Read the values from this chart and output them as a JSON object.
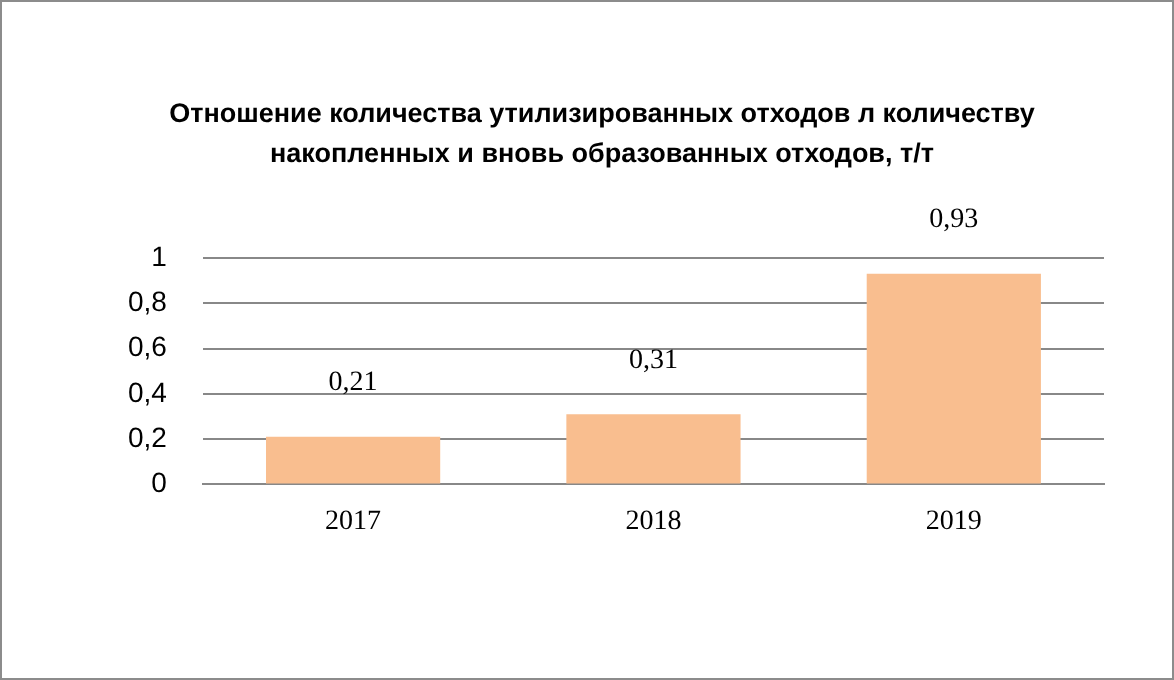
{
  "chart_data": {
    "type": "bar",
    "title": "Отношение количества утилизированных отходов л количеству накопленных и вновь образованных отходов, т/т",
    "categories": [
      "2017",
      "2018",
      "2019"
    ],
    "values": [
      0.21,
      0.31,
      0.93
    ],
    "value_labels": [
      "0,21",
      "0,31",
      "0,93"
    ],
    "color": "#f9be8f",
    "ylim": [
      0,
      1
    ],
    "yticks": [
      {
        "value": 0,
        "label": "0"
      },
      {
        "value": 0.2,
        "label": "0,2"
      },
      {
        "value": 0.4,
        "label": "0,4"
      },
      {
        "value": 0.6,
        "label": "0,6"
      },
      {
        "value": 0.8,
        "label": "0,8"
      },
      {
        "value": 1,
        "label": "1"
      }
    ],
    "grid": "y",
    "legend": false
  }
}
